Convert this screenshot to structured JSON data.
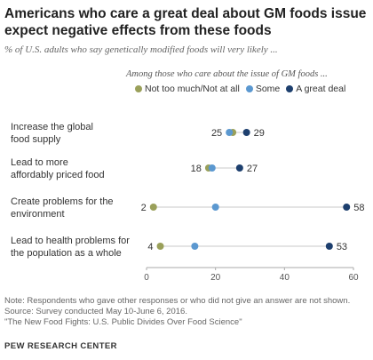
{
  "header": {
    "title": "Americans who care a great deal about GM foods issue expect negative effects from these foods",
    "subtitle": "% of U.S. adults who say genetically modified foods will very likely ..."
  },
  "legend_title": "Among those who care about the issue of GM foods ...",
  "colors": {
    "not_too_much": "#9aa05a",
    "some": "#5b98d0",
    "great_deal": "#1d3f6e",
    "axis": "#aaaaaa",
    "connector": "#dcdcdc"
  },
  "footer": {
    "note": "Note: Respondents who gave other responses or who did not give an answer are not shown.",
    "source": "Source: Survey conducted May 10-June 6, 2016.",
    "report": "\"The New Food Fights: U.S. Public Divides Over Food Science\"",
    "brand": "PEW RESEARCH CENTER"
  },
  "chart_data": {
    "type": "scatter",
    "xlim": [
      0,
      60
    ],
    "x_ticks": [
      0,
      20,
      40,
      60
    ],
    "legend_position": "top",
    "series": [
      {
        "name": "Not too much/Not at all",
        "values": [
          25,
          18,
          2,
          4
        ]
      },
      {
        "name": "Some",
        "values": [
          24,
          19,
          20,
          14
        ]
      },
      {
        "name": "A great deal",
        "values": [
          29,
          27,
          58,
          53
        ]
      }
    ],
    "categories": [
      {
        "lines": [
          "Increase the global",
          "food supply"
        ]
      },
      {
        "lines": [
          "Lead to more",
          "affordably priced food"
        ]
      },
      {
        "lines": [
          "Create problems for the",
          "environment"
        ]
      },
      {
        "lines": [
          "Lead to health problems for",
          "the population as a whole"
        ]
      }
    ],
    "data_labels": [
      {
        "left": "25",
        "right": "29"
      },
      {
        "left": "18",
        "right": "27"
      },
      {
        "left": "2",
        "right": "58"
      },
      {
        "left": "4",
        "right": "53"
      }
    ]
  }
}
